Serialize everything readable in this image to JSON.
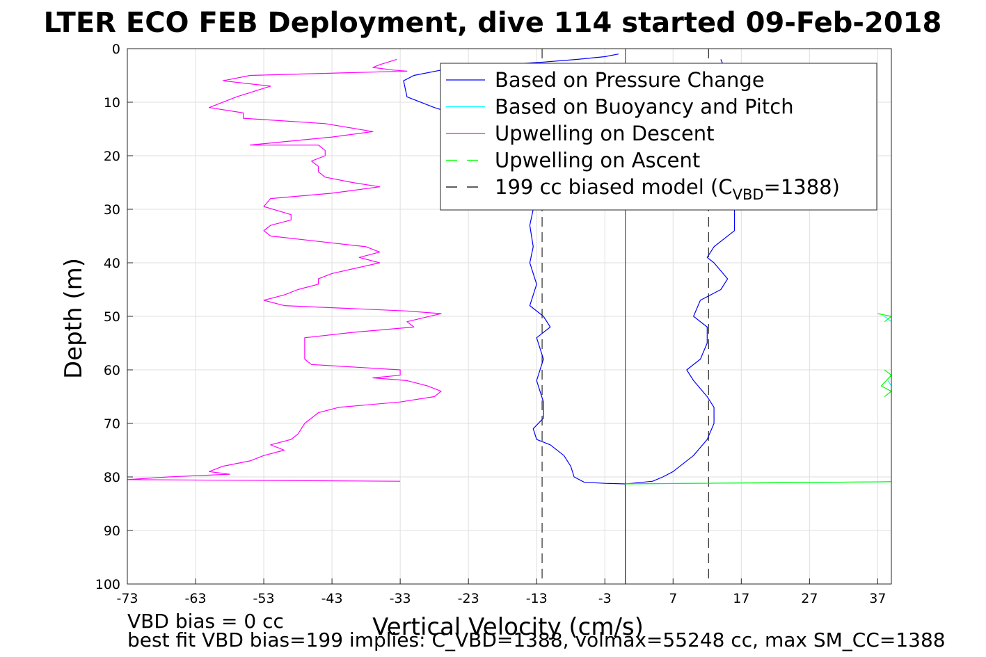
{
  "chart_data": {
    "type": "line",
    "title": "LTER ECO FEB Deployment, dive 114 started 09-Feb-2018",
    "xlabel": "Vertical Velocity (cm/s)",
    "ylabel": "Depth (m)",
    "xlim": [
      -73,
      39
    ],
    "ylim": [
      0,
      100
    ],
    "y_reversed": true,
    "grid": true,
    "xticks": [
      -73,
      -63,
      -53,
      -43,
      -33,
      -23,
      -13,
      -3,
      7,
      17,
      27,
      37
    ],
    "yticks": [
      0,
      10,
      20,
      30,
      40,
      50,
      60,
      70,
      80,
      90,
      100
    ],
    "legend_position": "top-right",
    "legend": [
      {
        "label": "Based on Pressure Change",
        "color": "#0000ff",
        "dash": "solid"
      },
      {
        "label": "Based on Buoyancy and Pitch",
        "color": "#00ffff",
        "dash": "solid"
      },
      {
        "label": "Upwelling on Descent",
        "color": "#ff00ff",
        "dash": "solid"
      },
      {
        "label": "Upwelling on Ascent",
        "color": "#00ff00",
        "dash": "dashed"
      },
      {
        "label_main": "199 cc biased model (C",
        "label_sub": "VBD",
        "label_end": "=1388)",
        "color": "#000000",
        "dash": "dashed"
      }
    ],
    "footer_lines": [
      "VBD bias = 0 cc",
      "best fit VBD bias=199 implies: C_VBD=1388, volmax=55248 cc, max SM_CC=1388"
    ],
    "series": [
      {
        "name": "Based on Pressure Change",
        "color": "#0000ff",
        "points": [
          [
            -1,
            1
          ],
          [
            -3,
            1.5
          ],
          [
            -7,
            2
          ],
          [
            -12,
            2.5
          ],
          [
            -18,
            3
          ],
          [
            -27,
            4
          ],
          [
            -31,
            5
          ],
          [
            -32.5,
            6
          ],
          [
            -32,
            9
          ],
          [
            -28,
            11
          ],
          [
            -23,
            13
          ],
          [
            -18,
            16
          ],
          [
            -15,
            20
          ],
          [
            -13,
            25
          ],
          [
            -13.5,
            30
          ],
          [
            -14,
            33
          ],
          [
            -13.5,
            37
          ],
          [
            -14,
            40
          ],
          [
            -13,
            44
          ],
          [
            -14,
            48
          ],
          [
            -12,
            50
          ],
          [
            -11,
            52
          ],
          [
            -13,
            54
          ],
          [
            -12,
            58
          ],
          [
            -13,
            62
          ],
          [
            -12,
            66
          ],
          [
            -12,
            69
          ],
          [
            -13.5,
            71
          ],
          [
            -13,
            73
          ],
          [
            -11,
            74
          ],
          [
            -9,
            76
          ],
          [
            -8,
            78
          ],
          [
            -7.5,
            80
          ],
          [
            -6,
            81
          ],
          [
            -3,
            81.2
          ],
          [
            0,
            81.3
          ],
          [
            1,
            81.2
          ],
          [
            4,
            80.8
          ],
          [
            5.5,
            80
          ],
          [
            7,
            79
          ],
          [
            10,
            76
          ],
          [
            12,
            73
          ],
          [
            13,
            70
          ],
          [
            13,
            67
          ],
          [
            12,
            65
          ],
          [
            10,
            62
          ],
          [
            9,
            60
          ],
          [
            11,
            58
          ],
          [
            12,
            55
          ],
          [
            12,
            52
          ],
          [
            10,
            50
          ],
          [
            11,
            47
          ],
          [
            14,
            45
          ],
          [
            15,
            43
          ],
          [
            13,
            40
          ],
          [
            12,
            39
          ],
          [
            13,
            37
          ],
          [
            16,
            34
          ],
          [
            16,
            30
          ],
          [
            16,
            25
          ],
          [
            15,
            20
          ],
          [
            14,
            12
          ],
          [
            15,
            5
          ],
          [
            14,
            2
          ]
        ]
      },
      {
        "name": "Based on Buoyancy and Pitch",
        "color": "#00ffff",
        "points": [
          [
            0,
            81.3
          ],
          [
            10,
            81.2
          ],
          [
            20,
            81.1
          ],
          [
            30,
            81.0
          ],
          [
            39,
            80.9
          ]
        ]
      },
      {
        "name": "Upwelling on Descent",
        "color": "#ff00ff",
        "points": [
          [
            -33.5,
            2
          ],
          [
            -36,
            3
          ],
          [
            -37,
            3.5
          ],
          [
            -34,
            4
          ],
          [
            -32,
            4.2
          ],
          [
            -55,
            5
          ],
          [
            -59,
            6
          ],
          [
            -52,
            7
          ],
          [
            -57,
            9
          ],
          [
            -61,
            11
          ],
          [
            -56,
            12
          ],
          [
            -56,
            13
          ],
          [
            -44,
            14
          ],
          [
            -37,
            15.5
          ],
          [
            -43,
            16.5
          ],
          [
            -55,
            18
          ],
          [
            -45,
            18
          ],
          [
            -44,
            19
          ],
          [
            -44,
            20
          ],
          [
            -46,
            21
          ],
          [
            -45,
            22
          ],
          [
            -45,
            23
          ],
          [
            -44,
            24
          ],
          [
            -40,
            25
          ],
          [
            -36,
            25.8
          ],
          [
            -43,
            27
          ],
          [
            -52,
            28
          ],
          [
            -53,
            29.5
          ],
          [
            -49,
            31
          ],
          [
            -49,
            32
          ],
          [
            -52,
            33
          ],
          [
            -53,
            34
          ],
          [
            -52,
            35
          ],
          [
            -45,
            36
          ],
          [
            -38,
            37
          ],
          [
            -36,
            38
          ],
          [
            -39,
            39
          ],
          [
            -36,
            40
          ],
          [
            -43,
            42
          ],
          [
            -45,
            43
          ],
          [
            -45,
            44
          ],
          [
            -48,
            45
          ],
          [
            -50,
            46
          ],
          [
            -53,
            47
          ],
          [
            -50,
            48
          ],
          [
            -32,
            49
          ],
          [
            -27,
            49.5
          ],
          [
            -32,
            51
          ],
          [
            -31,
            52
          ],
          [
            -40,
            53
          ],
          [
            -47,
            54
          ],
          [
            -47,
            56
          ],
          [
            -47,
            58
          ],
          [
            -46,
            59
          ],
          [
            -33,
            60
          ],
          [
            -33,
            61
          ],
          [
            -37,
            61.5
          ],
          [
            -32,
            62
          ],
          [
            -29,
            63
          ],
          [
            -27,
            64
          ],
          [
            -28,
            65
          ],
          [
            -33,
            66
          ],
          [
            -42,
            67
          ],
          [
            -45,
            68
          ],
          [
            -47,
            70
          ],
          [
            -48,
            72
          ],
          [
            -49,
            73
          ],
          [
            -52,
            74
          ],
          [
            -50,
            75
          ],
          [
            -53,
            76
          ],
          [
            -55,
            77
          ],
          [
            -59,
            78
          ],
          [
            -61,
            79
          ],
          [
            -58,
            79.5
          ],
          [
            -67,
            80
          ],
          [
            -73,
            80.5
          ],
          [
            -33,
            80.8
          ]
        ]
      },
      {
        "name": "Upwelling on Ascent",
        "color": "#00ff00",
        "points": [
          [
            0,
            81.3
          ],
          [
            10,
            81.2
          ],
          [
            20,
            81.1
          ],
          [
            30,
            81.0
          ],
          [
            39,
            80.9
          ]
        ]
      },
      {
        "name": "Upwelling on Ascent (partial, right)",
        "color": "#00ff00",
        "points": [
          [
            37,
            49.5
          ],
          [
            39,
            50
          ],
          [
            38,
            51
          ]
        ]
      },
      {
        "name": "Upwelling on Ascent (partial, right 2)",
        "color": "#00ff00",
        "points": [
          [
            38,
            60
          ],
          [
            39,
            61
          ],
          [
            37.5,
            63
          ],
          [
            39,
            64
          ],
          [
            38,
            65
          ]
        ]
      },
      {
        "name": "Buoyancy partial right",
        "color": "#00ffff",
        "points": [
          [
            38,
            50
          ],
          [
            39,
            51
          ]
        ]
      },
      {
        "name": "Buoyancy partial right 2",
        "color": "#00ffff",
        "points": [
          [
            38.5,
            62
          ],
          [
            39,
            63
          ]
        ]
      }
    ],
    "model_lines": [
      {
        "x": -12.2,
        "y": [
          0,
          100
        ],
        "color": "#000000",
        "dash": "dashed"
      },
      {
        "x": 12.2,
        "y": [
          0,
          100
        ],
        "color": "#000000",
        "dash": "dashed"
      },
      {
        "x": 0,
        "y": [
          0,
          100
        ],
        "color": "#000000",
        "dash": "solid"
      },
      {
        "x": 0,
        "y": [
          0,
          81
        ],
        "color": "#00aa00",
        "dash": "solid"
      }
    ]
  }
}
